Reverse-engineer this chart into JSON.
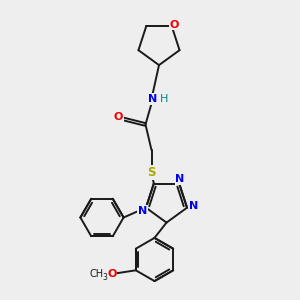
{
  "background_color": "#eeeeee",
  "bond_color": "#1a1a1a",
  "N_color": "#0000ee",
  "O_color": "#ee0000",
  "S_color": "#aaaa00",
  "H_color": "#008888",
  "figsize": [
    3.0,
    3.0
  ],
  "dpi": 100,
  "xlim": [
    0,
    10
  ],
  "ylim": [
    0,
    10
  ]
}
